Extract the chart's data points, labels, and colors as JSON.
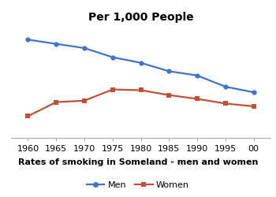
{
  "title": "Per 1,000 People",
  "xlabel": "Rates of smoking in Someland - men and women",
  "years": [
    1960,
    1965,
    1970,
    1975,
    1980,
    1985,
    1990,
    1995,
    2000
  ],
  "men": [
    700,
    670,
    640,
    575,
    535,
    475,
    445,
    365,
    325
  ],
  "women": [
    155,
    255,
    265,
    345,
    340,
    305,
    278,
    245,
    225
  ],
  "men_color": "#4472C4",
  "women_color": "#C0503A",
  "bg_color": "#FFFFFF",
  "ylim": [
    0,
    800
  ],
  "xlim": [
    1957,
    2003
  ],
  "title_fontsize": 10,
  "xlabel_fontsize": 8,
  "legend_fontsize": 8,
  "tick_fontsize": 8
}
